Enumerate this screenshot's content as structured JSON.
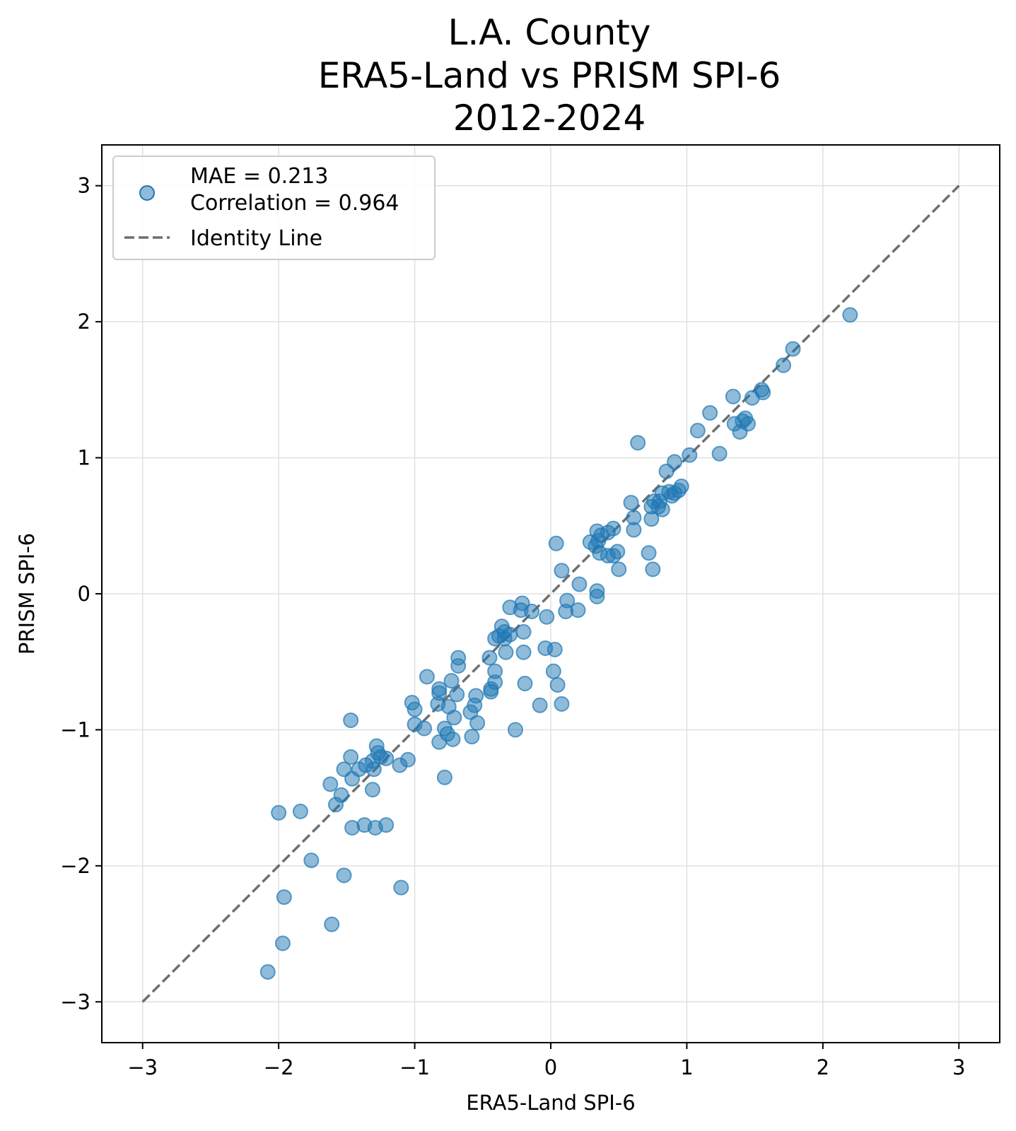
{
  "chart_data": {
    "type": "scatter",
    "title": [
      "L.A. County",
      "ERA5-Land vs PRISM SPI-6",
      "2012-2024"
    ],
    "xlabel": "ERA5-Land SPI-6",
    "ylabel": "PRISM SPI-6",
    "xlim": [
      -3.3,
      3.3
    ],
    "ylim": [
      -3.3,
      3.3
    ],
    "xticks": [
      -3,
      -2,
      -1,
      0,
      1,
      2,
      3
    ],
    "yticks": [
      -3,
      -2,
      -1,
      0,
      1,
      2,
      3
    ],
    "xtick_labels": [
      "−3",
      "−2",
      "−1",
      "0",
      "1",
      "2",
      "3"
    ],
    "ytick_labels": [
      "−3",
      "−2",
      "−1",
      "0",
      "1",
      "2",
      "3"
    ],
    "grid": true,
    "legend": {
      "placement": "upper left",
      "entries": [
        {
          "label_lines": [
            "MAE = 0.213",
            "Correlation = 0.964"
          ],
          "marker": "circle"
        },
        {
          "label_lines": [
            "Identity Line"
          ],
          "marker": "dashed-line"
        }
      ]
    },
    "colors": {
      "points": "#1f77b4",
      "identity": "#555555",
      "grid": "#e0e0e0"
    },
    "identity_line": {
      "x": [
        -3,
        3
      ],
      "y": [
        -3,
        3
      ]
    },
    "series": [
      {
        "points": [
          [
            2.2,
            2.05
          ],
          [
            1.78,
            1.8
          ],
          [
            1.71,
            1.68
          ],
          [
            1.56,
            1.48
          ],
          [
            1.55,
            1.5
          ],
          [
            1.48,
            1.44
          ],
          [
            1.34,
            1.45
          ],
          [
            1.45,
            1.25
          ],
          [
            1.43,
            1.29
          ],
          [
            1.41,
            1.27
          ],
          [
            1.39,
            1.19
          ],
          [
            1.35,
            1.25
          ],
          [
            1.17,
            1.33
          ],
          [
            1.08,
            1.2
          ],
          [
            1.24,
            1.03
          ],
          [
            1.02,
            1.02
          ],
          [
            0.91,
            0.97
          ],
          [
            0.85,
            0.9
          ],
          [
            0.64,
            1.11
          ],
          [
            0.96,
            0.79
          ],
          [
            0.94,
            0.76
          ],
          [
            0.91,
            0.74
          ],
          [
            0.89,
            0.72
          ],
          [
            0.87,
            0.75
          ],
          [
            0.82,
            0.74
          ],
          [
            0.8,
            0.68
          ],
          [
            0.82,
            0.62
          ],
          [
            0.79,
            0.64
          ],
          [
            0.76,
            0.68
          ],
          [
            0.74,
            0.64
          ],
          [
            0.59,
            0.67
          ],
          [
            0.61,
            0.56
          ],
          [
            0.74,
            0.55
          ],
          [
            0.61,
            0.47
          ],
          [
            0.46,
            0.48
          ],
          [
            0.42,
            0.45
          ],
          [
            0.34,
            0.46
          ],
          [
            0.37,
            0.43
          ],
          [
            0.29,
            0.38
          ],
          [
            0.35,
            0.39
          ],
          [
            0.33,
            0.35
          ],
          [
            0.36,
            0.3
          ],
          [
            0.42,
            0.28
          ],
          [
            0.46,
            0.28
          ],
          [
            0.49,
            0.31
          ],
          [
            0.72,
            0.3
          ],
          [
            0.75,
            0.18
          ],
          [
            0.5,
            0.18
          ],
          [
            0.34,
            0.02
          ],
          [
            0.34,
            -0.02
          ],
          [
            0.21,
            0.07
          ],
          [
            0.08,
            0.17
          ],
          [
            0.04,
            0.37
          ],
          [
            0.12,
            -0.05
          ],
          [
            0.11,
            -0.13
          ],
          [
            0.2,
            -0.12
          ],
          [
            -0.03,
            -0.17
          ],
          [
            -0.14,
            -0.13
          ],
          [
            -0.21,
            -0.07
          ],
          [
            -0.3,
            -0.1
          ],
          [
            -0.22,
            -0.12
          ],
          [
            -0.2,
            -0.28
          ],
          [
            -0.3,
            -0.3
          ],
          [
            -0.34,
            -0.28
          ],
          [
            -0.36,
            -0.24
          ],
          [
            -0.38,
            -0.31
          ],
          [
            -0.34,
            -0.33
          ],
          [
            -0.41,
            -0.33
          ],
          [
            -0.33,
            -0.43
          ],
          [
            -0.2,
            -0.43
          ],
          [
            -0.45,
            -0.47
          ],
          [
            -0.41,
            -0.57
          ],
          [
            -0.41,
            -0.65
          ],
          [
            -0.44,
            -0.7
          ],
          [
            -0.44,
            -0.72
          ],
          [
            -0.19,
            -0.66
          ],
          [
            -0.04,
            -0.4
          ],
          [
            0.03,
            -0.41
          ],
          [
            0.02,
            -0.57
          ],
          [
            0.05,
            -0.67
          ],
          [
            -0.08,
            -0.82
          ],
          [
            0.08,
            -0.81
          ],
          [
            -0.26,
            -1.0
          ],
          [
            -0.68,
            -0.47
          ],
          [
            -0.68,
            -0.53
          ],
          [
            -0.73,
            -0.64
          ],
          [
            -0.69,
            -0.74
          ],
          [
            -0.75,
            -0.83
          ],
          [
            -0.82,
            -0.7
          ],
          [
            -0.82,
            -0.73
          ],
          [
            -0.83,
            -0.81
          ],
          [
            -0.91,
            -0.61
          ],
          [
            -1.02,
            -0.8
          ],
          [
            -1.0,
            -0.85
          ],
          [
            -0.55,
            -0.75
          ],
          [
            -0.56,
            -0.82
          ],
          [
            -0.59,
            -0.87
          ],
          [
            -0.54,
            -0.95
          ],
          [
            -0.71,
            -0.91
          ],
          [
            -0.58,
            -1.05
          ],
          [
            -0.72,
            -1.07
          ],
          [
            -0.76,
            -1.03
          ],
          [
            -0.78,
            -0.99
          ],
          [
            -0.82,
            -1.09
          ],
          [
            -0.93,
            -0.99
          ],
          [
            -1.0,
            -0.96
          ],
          [
            -0.78,
            -1.35
          ],
          [
            -1.05,
            -1.22
          ],
          [
            -1.11,
            -1.26
          ],
          [
            -1.21,
            -1.21
          ],
          [
            -1.25,
            -1.2
          ],
          [
            -1.27,
            -1.17
          ],
          [
            -1.28,
            -1.12
          ],
          [
            -1.31,
            -1.23
          ],
          [
            -1.3,
            -1.29
          ],
          [
            -1.36,
            -1.26
          ],
          [
            -1.41,
            -1.29
          ],
          [
            -1.47,
            -1.2
          ],
          [
            -1.46,
            -1.36
          ],
          [
            -1.47,
            -0.93
          ],
          [
            -1.52,
            -1.29
          ],
          [
            -1.54,
            -1.48
          ],
          [
            -1.58,
            -1.55
          ],
          [
            -1.62,
            -1.4
          ],
          [
            -1.31,
            -1.44
          ],
          [
            -1.21,
            -1.7
          ],
          [
            -1.29,
            -1.72
          ],
          [
            -1.37,
            -1.7
          ],
          [
            -1.46,
            -1.72
          ],
          [
            -1.84,
            -1.6
          ],
          [
            -2.0,
            -1.61
          ],
          [
            -1.76,
            -1.96
          ],
          [
            -1.52,
            -2.07
          ],
          [
            -1.1,
            -2.16
          ],
          [
            -1.96,
            -2.23
          ],
          [
            -1.61,
            -2.43
          ],
          [
            -1.97,
            -2.57
          ],
          [
            -2.08,
            -2.78
          ]
        ]
      }
    ]
  }
}
